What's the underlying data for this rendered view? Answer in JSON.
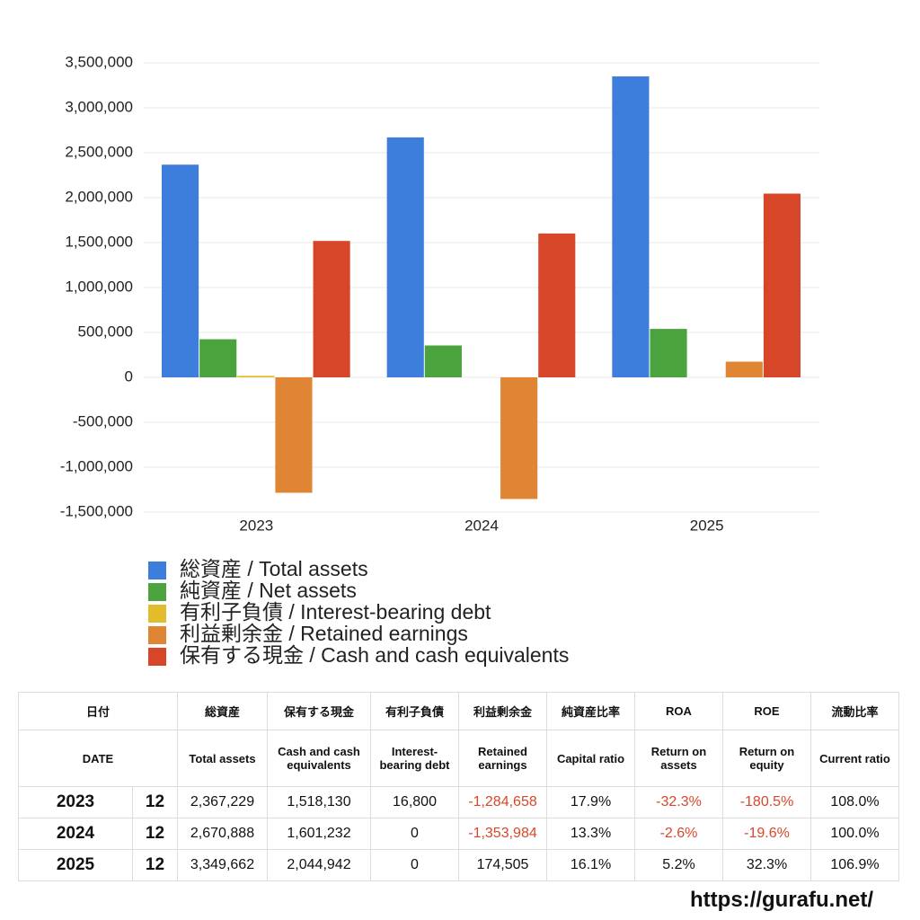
{
  "chart_data": {
    "type": "bar",
    "categories": [
      "2023",
      "2024",
      "2025"
    ],
    "series": [
      {
        "name": "総資産 / Total assets",
        "color": "#3d7ddc",
        "values": [
          2367229,
          2670888,
          3349662
        ]
      },
      {
        "name": "純資産 / Net assets",
        "color": "#4aa33c",
        "values": [
          424000,
          355000,
          539000
        ]
      },
      {
        "name": "有利子負債 / Interest-bearing debt",
        "color": "#e3bc2c",
        "values": [
          16800,
          0,
          0
        ]
      },
      {
        "name": "利益剰余金 / Retained earnings",
        "color": "#e08533",
        "values": [
          -1284658,
          -1353984,
          174505
        ]
      },
      {
        "name": "保有する現金 /  Cash and cash equivalents",
        "color": "#d8462a",
        "values": [
          1518130,
          1601232,
          2044942
        ]
      }
    ],
    "ylim": [
      -1500000,
      3500000
    ],
    "yticks": [
      {
        "value": -1500000,
        "label": "-1,500,000"
      },
      {
        "value": -1000000,
        "label": "-1,000,000"
      },
      {
        "value": -500000,
        "label": "-500,000"
      },
      0,
      {
        "value": 500000,
        "label": "500,000"
      },
      {
        "value": 1000000,
        "label": "1,000,000"
      },
      {
        "value": 1500000,
        "label": "1,500,000"
      },
      {
        "value": 2000000,
        "label": "2,000,000"
      },
      {
        "value": 2500000,
        "label": "2,500,000"
      },
      {
        "value": 3000000,
        "label": "3,000,000"
      },
      {
        "value": 3500000,
        "label": "3,500,000"
      }
    ],
    "grid": true,
    "legend": "bottom"
  },
  "table": {
    "header_ja": [
      "日付",
      "総資産",
      "保有する現金",
      "有利子負債",
      "利益剰余金",
      "純資産比率",
      "ROA",
      "ROE",
      "流動比率"
    ],
    "header_en": [
      "DATE",
      "Total assets",
      "Cash and cash equivalents",
      "Interest-bearing debt",
      "Retained earnings",
      "Capital ratio",
      "Return on assets",
      "Return on equity",
      "Current ratio"
    ],
    "rows": [
      [
        "2023",
        "12",
        "2,367,229",
        "1,518,130",
        "16,800",
        "-1,284,658",
        "17.9%",
        "-32.3%",
        "-180.5%",
        "108.0%"
      ],
      [
        "2024",
        "12",
        "2,670,888",
        "1,601,232",
        "0",
        "-1,353,984",
        "13.3%",
        "-2.6%",
        "-19.6%",
        "100.0%"
      ],
      [
        "2025",
        "12",
        "3,349,662",
        "2,044,942",
        "0",
        "174,505",
        "16.1%",
        "5.2%",
        "32.3%",
        "106.9%"
      ]
    ]
  },
  "footer": {
    "url": "https://gurafu.net/"
  }
}
